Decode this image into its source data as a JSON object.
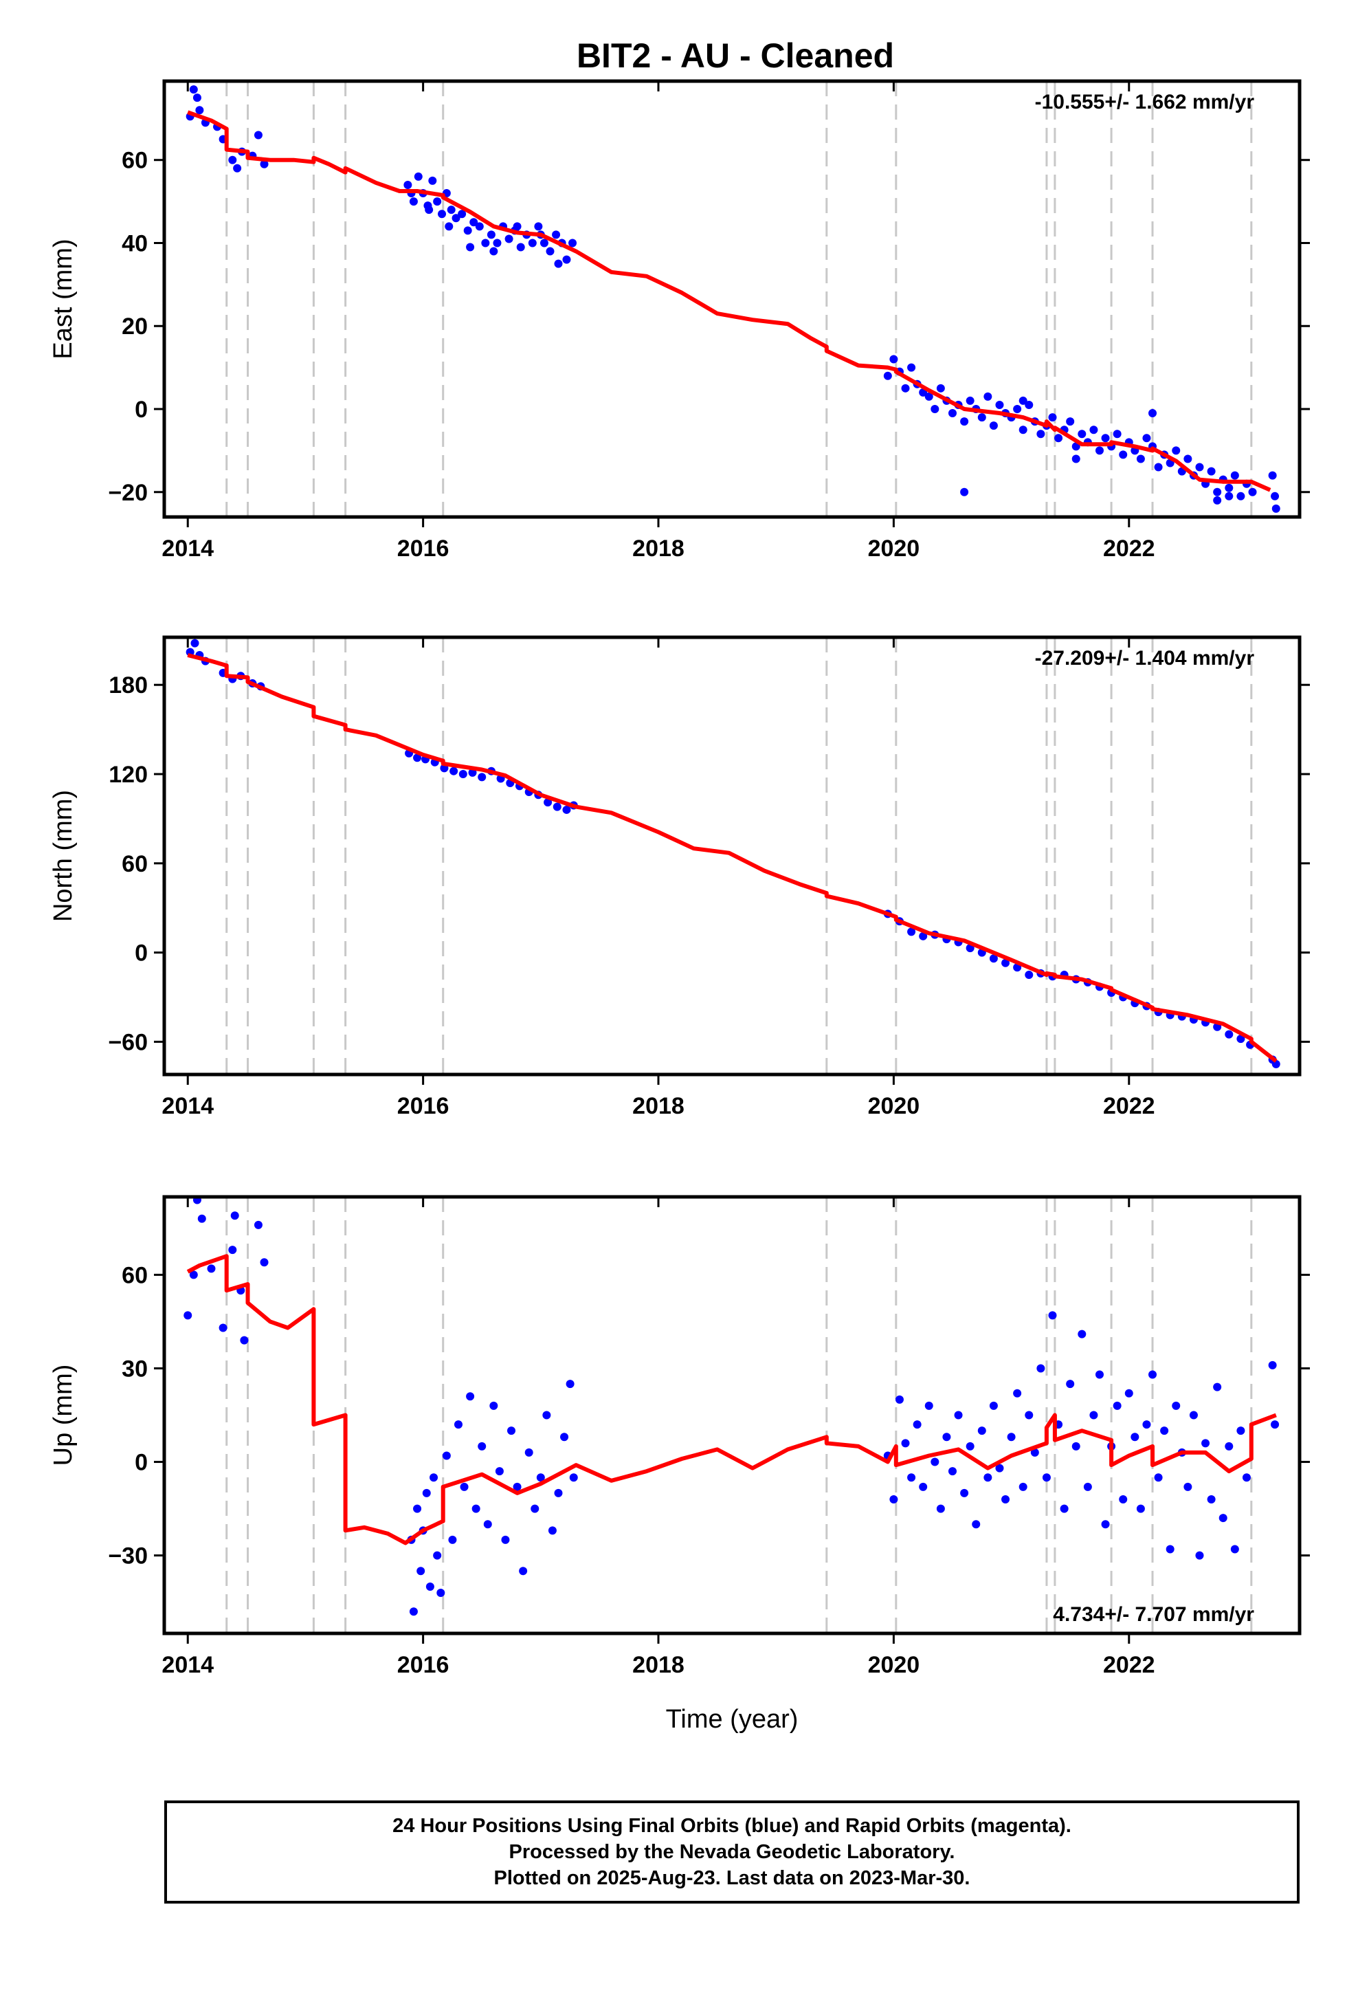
{
  "title": "BIT2  - AU - Cleaned",
  "x_axis_label": "Time (year)",
  "footer": {
    "line1": "24 Hour Positions Using Final Orbits (blue) and Rapid Orbits (magenta).",
    "line2": "Processed by the Nevada Geodetic Laboratory.",
    "line3": "Plotted on 2025-Aug-23. Last data on 2023-Mar-30."
  },
  "colors": {
    "final_orbits": "#0000ff",
    "model": "#ff0000",
    "equipment_change": "#c8c8c8",
    "frame": "#000000"
  },
  "chart_data": [
    {
      "type": "scatter",
      "panel": "east",
      "ylabel": "East (mm)",
      "rate_label": "-10.555+/- 1.662 mm/yr",
      "rate_position": "top-right",
      "xlim": [
        2013.8,
        2023.45
      ],
      "ylim": [
        -26,
        79
      ],
      "x_ticks": [
        2014,
        2016,
        2018,
        2020,
        2022
      ],
      "y_ticks": [
        -20,
        0,
        20,
        40,
        60
      ],
      "grid": false,
      "offset_lines": [
        2014.33,
        2014.51,
        2015.07,
        2015.34,
        2016.17,
        2019.43,
        2020.02,
        2021.3,
        2021.37,
        2021.85,
        2022.2,
        2023.04
      ],
      "model": {
        "x": [
          2014.0,
          2014.2,
          2014.33,
          2014.33,
          2014.51,
          2014.51,
          2014.7,
          2014.9,
          2015.07,
          2015.07,
          2015.2,
          2015.34,
          2015.34,
          2015.6,
          2015.8,
          2015.95,
          2016.17,
          2016.17,
          2016.4,
          2016.6,
          2016.8,
          2017.0,
          2017.3,
          2017.6,
          2017.9,
          2018.2,
          2018.5,
          2018.8,
          2019.1,
          2019.3,
          2019.43,
          2019.43,
          2019.7,
          2019.95,
          2020.02,
          2020.02,
          2020.3,
          2020.6,
          2020.9,
          2021.1,
          2021.3,
          2021.3,
          2021.37,
          2021.37,
          2021.6,
          2021.85,
          2021.85,
          2022.05,
          2022.2,
          2022.2,
          2022.4,
          2022.6,
          2022.8,
          2023.04,
          2023.04,
          2023.2
        ],
        "y": [
          71.5,
          69.5,
          67.5,
          62.5,
          62.0,
          60.5,
          60.0,
          60.0,
          59.5,
          60.5,
          59.0,
          57.0,
          58.0,
          54.5,
          52.5,
          52.5,
          51.5,
          51.0,
          47.5,
          44.0,
          42.5,
          42.0,
          38.0,
          33.0,
          32.0,
          28.0,
          23.0,
          21.5,
          20.5,
          17.0,
          15.0,
          14.0,
          10.5,
          10.0,
          9.5,
          9.0,
          4.5,
          0.0,
          -1.0,
          -2.0,
          -4.0,
          -3.0,
          -5.0,
          -4.5,
          -8.5,
          -8.5,
          -8.0,
          -9.0,
          -10.0,
          -9.5,
          -12.5,
          -17.0,
          -17.5,
          -17.5,
          -17.5,
          -19.5
        ]
      },
      "points": {
        "x": [
          2014.02,
          2014.05,
          2014.08,
          2014.1,
          2014.15,
          2014.25,
          2014.3,
          2014.38,
          2014.42,
          2014.46,
          2014.55,
          2014.6,
          2014.65,
          2015.87,
          2015.92,
          2015.96,
          2016.0,
          2016.04,
          2016.08,
          2016.12,
          2016.16,
          2016.2,
          2016.24,
          2016.28,
          2016.33,
          2016.38,
          2016.43,
          2016.48,
          2016.53,
          2016.58,
          2016.63,
          2016.68,
          2016.73,
          2016.78,
          2016.83,
          2016.88,
          2016.93,
          2016.98,
          2017.03,
          2017.08,
          2017.13,
          2017.18,
          2017.22,
          2017.27,
          2015.9,
          2016.05,
          2016.22,
          2016.4,
          2016.6,
          2016.8,
          2017.0,
          2017.15,
          2019.95,
          2020.0,
          2020.05,
          2020.1,
          2020.15,
          2020.2,
          2020.25,
          2020.3,
          2020.35,
          2020.4,
          2020.45,
          2020.5,
          2020.55,
          2020.6,
          2020.65,
          2020.7,
          2020.75,
          2020.8,
          2020.85,
          2020.9,
          2020.95,
          2021.0,
          2021.05,
          2021.1,
          2021.15,
          2021.2,
          2021.25,
          2021.3,
          2021.35,
          2021.4,
          2021.45,
          2021.5,
          2021.55,
          2021.6,
          2021.65,
          2021.7,
          2021.75,
          2021.8,
          2021.85,
          2021.9,
          2021.95,
          2022.0,
          2022.05,
          2022.1,
          2022.15,
          2022.2,
          2022.25,
          2022.3,
          2022.35,
          2022.4,
          2022.45,
          2022.5,
          2022.55,
          2022.6,
          2022.65,
          2022.7,
          2022.75,
          2022.8,
          2022.85,
          2022.9,
          2022.95,
          2023.0,
          2023.05,
          2023.22,
          2023.24,
          2020.6,
          2021.1,
          2021.55,
          2022.2,
          2022.75,
          2022.85,
          2023.25
        ],
        "y": [
          70.5,
          77.0,
          75.0,
          72.0,
          69.0,
          68.0,
          65.0,
          60.0,
          58.0,
          62.0,
          61.0,
          66.0,
          59.0,
          54.0,
          50.0,
          56.0,
          52.0,
          49.0,
          55.0,
          50.0,
          47.0,
          52.0,
          48.0,
          46.0,
          47.0,
          43.0,
          45.0,
          44.0,
          40.0,
          42.0,
          40.0,
          44.0,
          41.0,
          43.0,
          39.0,
          42.0,
          40.0,
          44.0,
          40.0,
          38.0,
          42.0,
          40.0,
          36.0,
          40.0,
          52.0,
          48.0,
          44.0,
          39.0,
          38.0,
          44.0,
          42.0,
          35.0,
          8.0,
          12.0,
          9.0,
          5.0,
          10.0,
          6.0,
          4.0,
          3.0,
          0.0,
          5.0,
          2.0,
          -1.0,
          1.0,
          -3.0,
          2.0,
          0.0,
          -2.0,
          3.0,
          -4.0,
          1.0,
          -1.0,
          -2.0,
          0.0,
          -5.0,
          1.0,
          -3.0,
          -6.0,
          -4.0,
          -2.0,
          -7.0,
          -5.0,
          -3.0,
          -9.0,
          -6.0,
          -8.0,
          -5.0,
          -10.0,
          -7.0,
          -9.0,
          -6.0,
          -11.0,
          -8.0,
          -10.0,
          -12.0,
          -7.0,
          -9.0,
          -14.0,
          -11.0,
          -13.0,
          -10.0,
          -15.0,
          -12.0,
          -16.0,
          -14.0,
          -18.0,
          -15.0,
          -20.0,
          -17.0,
          -19.0,
          -16.0,
          -21.0,
          -18.0,
          -20.0,
          -16.0,
          -21.0,
          -20.0,
          2.0,
          -12.0,
          -1.0,
          -22.0,
          -21.0,
          -24.0
        ]
      }
    },
    {
      "type": "scatter",
      "panel": "north",
      "ylabel": "North (mm)",
      "rate_label": "-27.209+/- 1.404 mm/yr",
      "rate_position": "top-right",
      "xlim": [
        2013.8,
        2023.45
      ],
      "ylim": [
        -82,
        212
      ],
      "x_ticks": [
        2014,
        2016,
        2018,
        2020,
        2022
      ],
      "y_ticks": [
        -60,
        0,
        60,
        120,
        180
      ],
      "grid": false,
      "offset_lines": [
        2014.33,
        2014.51,
        2015.07,
        2015.34,
        2016.17,
        2019.43,
        2020.02,
        2021.3,
        2021.37,
        2021.85,
        2022.2,
        2023.04
      ],
      "model": {
        "x": [
          2014.0,
          2014.2,
          2014.33,
          2014.33,
          2014.51,
          2014.51,
          2014.8,
          2015.07,
          2015.07,
          2015.34,
          2015.34,
          2015.6,
          2016.0,
          2016.17,
          2016.17,
          2016.5,
          2016.7,
          2017.0,
          2017.3,
          2017.6,
          2018.0,
          2018.3,
          2018.6,
          2018.9,
          2019.2,
          2019.43,
          2019.43,
          2019.7,
          2020.02,
          2020.02,
          2020.3,
          2020.6,
          2021.0,
          2021.3,
          2021.3,
          2021.37,
          2021.37,
          2021.6,
          2021.85,
          2021.85,
          2022.2,
          2022.2,
          2022.5,
          2022.8,
          2023.04,
          2023.04,
          2023.25
        ],
        "y": [
          200.0,
          196.0,
          193.0,
          186.0,
          185.0,
          182.0,
          172.0,
          165.0,
          159.0,
          153.0,
          150.0,
          146.0,
          133.0,
          129.0,
          127.0,
          123.0,
          119.0,
          106.0,
          98.0,
          94.0,
          81.0,
          70.0,
          67.0,
          55.0,
          46.0,
          40.0,
          38.0,
          33.0,
          24.0,
          22.0,
          13.0,
          8.0,
          -5.0,
          -15.0,
          -14.0,
          -15.0,
          -16.0,
          -18.0,
          -24.0,
          -25.0,
          -37.0,
          -38.0,
          -42.0,
          -48.0,
          -58.0,
          -60.0,
          -73.0
        ]
      },
      "points": {
        "x": [
          2014.02,
          2014.06,
          2014.1,
          2014.15,
          2014.3,
          2014.38,
          2014.45,
          2014.55,
          2014.62,
          2015.88,
          2015.95,
          2016.02,
          2016.1,
          2016.18,
          2016.26,
          2016.34,
          2016.42,
          2016.5,
          2016.58,
          2016.66,
          2016.74,
          2016.82,
          2016.9,
          2016.98,
          2017.06,
          2017.14,
          2017.22,
          2017.28,
          2019.95,
          2020.05,
          2020.15,
          2020.25,
          2020.35,
          2020.45,
          2020.55,
          2020.65,
          2020.75,
          2020.85,
          2020.95,
          2021.05,
          2021.15,
          2021.25,
          2021.35,
          2021.45,
          2021.55,
          2021.65,
          2021.75,
          2021.85,
          2021.95,
          2022.05,
          2022.15,
          2022.25,
          2022.35,
          2022.45,
          2022.55,
          2022.65,
          2022.75,
          2022.85,
          2022.95,
          2023.03,
          2023.22,
          2023.25
        ],
        "y": [
          202.0,
          208.0,
          200.0,
          196.0,
          188.0,
          184.0,
          186.0,
          181.0,
          179.0,
          134.0,
          131.0,
          130.0,
          128.0,
          124.0,
          122.0,
          120.0,
          121.0,
          118.0,
          122.0,
          117.0,
          114.0,
          112.0,
          108.0,
          106.0,
          101.0,
          98.0,
          96.0,
          99.0,
          26.0,
          21.0,
          14.0,
          11.0,
          12.0,
          9.0,
          7.0,
          3.0,
          0.0,
          -4.0,
          -7.0,
          -10.0,
          -15.0,
          -14.0,
          -16.0,
          -15.0,
          -18.0,
          -20.0,
          -23.0,
          -27.0,
          -30.0,
          -34.0,
          -36.0,
          -40.0,
          -42.0,
          -43.0,
          -45.0,
          -47.0,
          -50.0,
          -55.0,
          -58.0,
          -62.0,
          -72.0,
          -75.0
        ]
      }
    },
    {
      "type": "scatter",
      "panel": "up",
      "ylabel": "Up (mm)",
      "rate_label": "4.734+/- 7.707 mm/yr",
      "rate_position": "bottom-right",
      "xlim": [
        2013.8,
        2023.45
      ],
      "ylim": [
        -55,
        85
      ],
      "x_ticks": [
        2014,
        2016,
        2018,
        2020,
        2022
      ],
      "y_ticks": [
        -30,
        0,
        30,
        60
      ],
      "grid": false,
      "offset_lines": [
        2014.33,
        2014.51,
        2015.07,
        2015.34,
        2016.17,
        2019.43,
        2020.02,
        2021.3,
        2021.37,
        2021.85,
        2022.2,
        2023.04
      ],
      "model": {
        "x": [
          2014.0,
          2014.1,
          2014.33,
          2014.33,
          2014.51,
          2014.51,
          2014.7,
          2014.85,
          2015.07,
          2015.07,
          2015.34,
          2015.34,
          2015.5,
          2015.7,
          2015.85,
          2016.0,
          2016.17,
          2016.17,
          2016.5,
          2016.8,
          2017.0,
          2017.3,
          2017.6,
          2017.9,
          2018.2,
          2018.5,
          2018.8,
          2019.1,
          2019.43,
          2019.43,
          2019.7,
          2019.95,
          2020.02,
          2020.02,
          2020.3,
          2020.55,
          2020.8,
          2021.0,
          2021.3,
          2021.3,
          2021.37,
          2021.37,
          2021.6,
          2021.85,
          2021.85,
          2022.0,
          2022.2,
          2022.2,
          2022.45,
          2022.65,
          2022.85,
          2023.04,
          2023.04,
          2023.25
        ],
        "y": [
          61.0,
          63.0,
          66.0,
          55.0,
          57.0,
          51.0,
          45.0,
          43.0,
          49.0,
          12.0,
          15.0,
          -22.0,
          -21.0,
          -23.0,
          -26.0,
          -22.0,
          -19.0,
          -8.0,
          -4.0,
          -10.0,
          -7.0,
          -1.0,
          -6.0,
          -3.0,
          1.0,
          4.0,
          -2.0,
          4.0,
          8.0,
          6.0,
          5.0,
          0.0,
          5.0,
          -1.0,
          2.0,
          4.0,
          -2.0,
          2.0,
          6.0,
          11.0,
          15.0,
          7.0,
          10.0,
          7.0,
          -1.0,
          2.0,
          5.0,
          -1.0,
          3.0,
          3.0,
          -3.0,
          1.0,
          12.0,
          15.0
        ]
      },
      "points": {
        "x": [
          2014.0,
          2014.05,
          2014.08,
          2014.12,
          2014.2,
          2014.3,
          2014.38,
          2014.4,
          2014.45,
          2014.48,
          2014.6,
          2014.65,
          2015.9,
          2015.92,
          2015.95,
          2015.98,
          2016.0,
          2016.03,
          2016.06,
          2016.09,
          2016.12,
          2016.15,
          2016.2,
          2016.25,
          2016.3,
          2016.35,
          2016.4,
          2016.45,
          2016.5,
          2016.55,
          2016.6,
          2016.65,
          2016.7,
          2016.75,
          2016.8,
          2016.85,
          2016.9,
          2016.95,
          2017.0,
          2017.05,
          2017.1,
          2017.15,
          2017.2,
          2017.25,
          2017.28,
          2019.95,
          2020.0,
          2020.05,
          2020.1,
          2020.15,
          2020.2,
          2020.25,
          2020.3,
          2020.35,
          2020.4,
          2020.45,
          2020.5,
          2020.55,
          2020.6,
          2020.65,
          2020.7,
          2020.75,
          2020.8,
          2020.85,
          2020.9,
          2020.95,
          2021.0,
          2021.05,
          2021.1,
          2021.15,
          2021.2,
          2021.25,
          2021.3,
          2021.35,
          2021.4,
          2021.45,
          2021.5,
          2021.55,
          2021.6,
          2021.65,
          2021.7,
          2021.75,
          2021.8,
          2021.85,
          2021.9,
          2021.95,
          2022.0,
          2022.05,
          2022.1,
          2022.15,
          2022.2,
          2022.25,
          2022.3,
          2022.35,
          2022.4,
          2022.45,
          2022.5,
          2022.55,
          2022.6,
          2022.65,
          2022.7,
          2022.75,
          2022.8,
          2022.85,
          2022.9,
          2022.95,
          2023.0,
          2023.22,
          2023.24
        ],
        "y": [
          47.0,
          60.0,
          84.0,
          78.0,
          62.0,
          43.0,
          68.0,
          79.0,
          55.0,
          39.0,
          76.0,
          64.0,
          -25.0,
          -48.0,
          -15.0,
          -35.0,
          -22.0,
          -10.0,
          -40.0,
          -5.0,
          -30.0,
          -42.0,
          2.0,
          -25.0,
          12.0,
          -8.0,
          21.0,
          -15.0,
          5.0,
          -20.0,
          18.0,
          -3.0,
          -25.0,
          10.0,
          -8.0,
          -35.0,
          3.0,
          -15.0,
          -5.0,
          15.0,
          -22.0,
          -10.0,
          8.0,
          25.0,
          -5.0,
          2.0,
          -12.0,
          20.0,
          6.0,
          -5.0,
          12.0,
          -8.0,
          18.0,
          0.0,
          -15.0,
          8.0,
          -3.0,
          15.0,
          -10.0,
          5.0,
          -20.0,
          10.0,
          -5.0,
          18.0,
          -2.0,
          -12.0,
          8.0,
          22.0,
          -8.0,
          15.0,
          3.0,
          30.0,
          -5.0,
          47.0,
          12.0,
          -15.0,
          25.0,
          5.0,
          41.0,
          -8.0,
          15.0,
          28.0,
          -20.0,
          5.0,
          18.0,
          -12.0,
          22.0,
          8.0,
          -15.0,
          12.0,
          28.0,
          -5.0,
          10.0,
          -28.0,
          18.0,
          3.0,
          -8.0,
          15.0,
          -30.0,
          6.0,
          -12.0,
          24.0,
          -18.0,
          5.0,
          -28.0,
          10.0,
          -5.0,
          31.0,
          12.0
        ]
      }
    }
  ]
}
